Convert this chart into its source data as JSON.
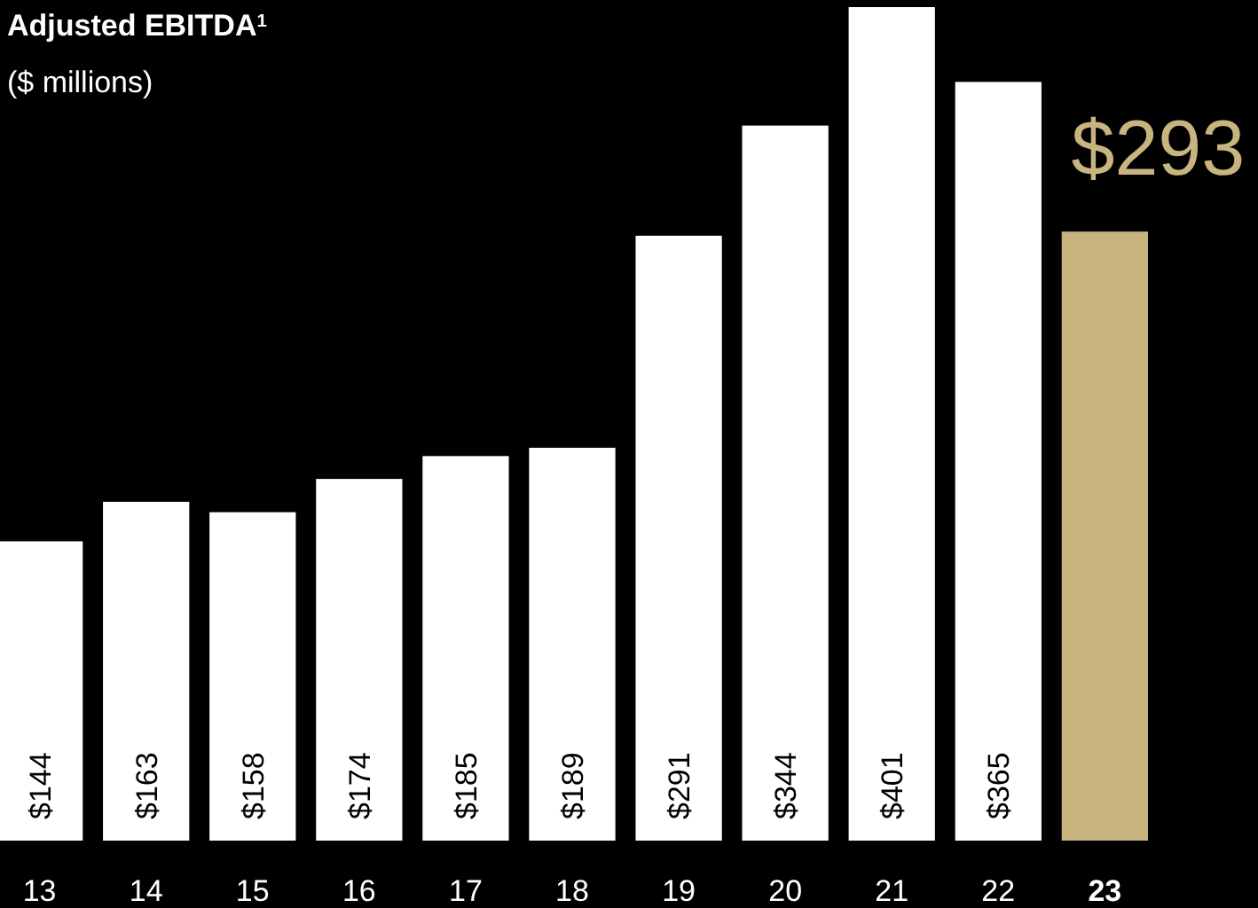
{
  "chart_data": {
    "type": "bar",
    "title": "Adjusted EBITDA$^{1}$",
    "subtitle": "($ millions)",
    "categories": [
      "13",
      "14",
      "15",
      "16",
      "17",
      "18",
      "19",
      "20",
      "21",
      "22",
      "23"
    ],
    "values": [
      144,
      163,
      158,
      174,
      185,
      189,
      291,
      344,
      401,
      365,
      293
    ],
    "colors": [
      "#ffffff",
      "#ffffff",
      "#ffffff",
      "#ffffff",
      "#ffffff",
      "#ffffff",
      "#ffffff",
      "#ffffff",
      "#ffffff",
      "#ffffff",
      "#c8b47f"
    ],
    "value_labels": [
      "$144",
      "$163",
      "$158",
      "$174",
      "$185",
      "$189",
      "$291",
      "$344",
      "$401",
      "$365",
      "$293"
    ]
  }
}
